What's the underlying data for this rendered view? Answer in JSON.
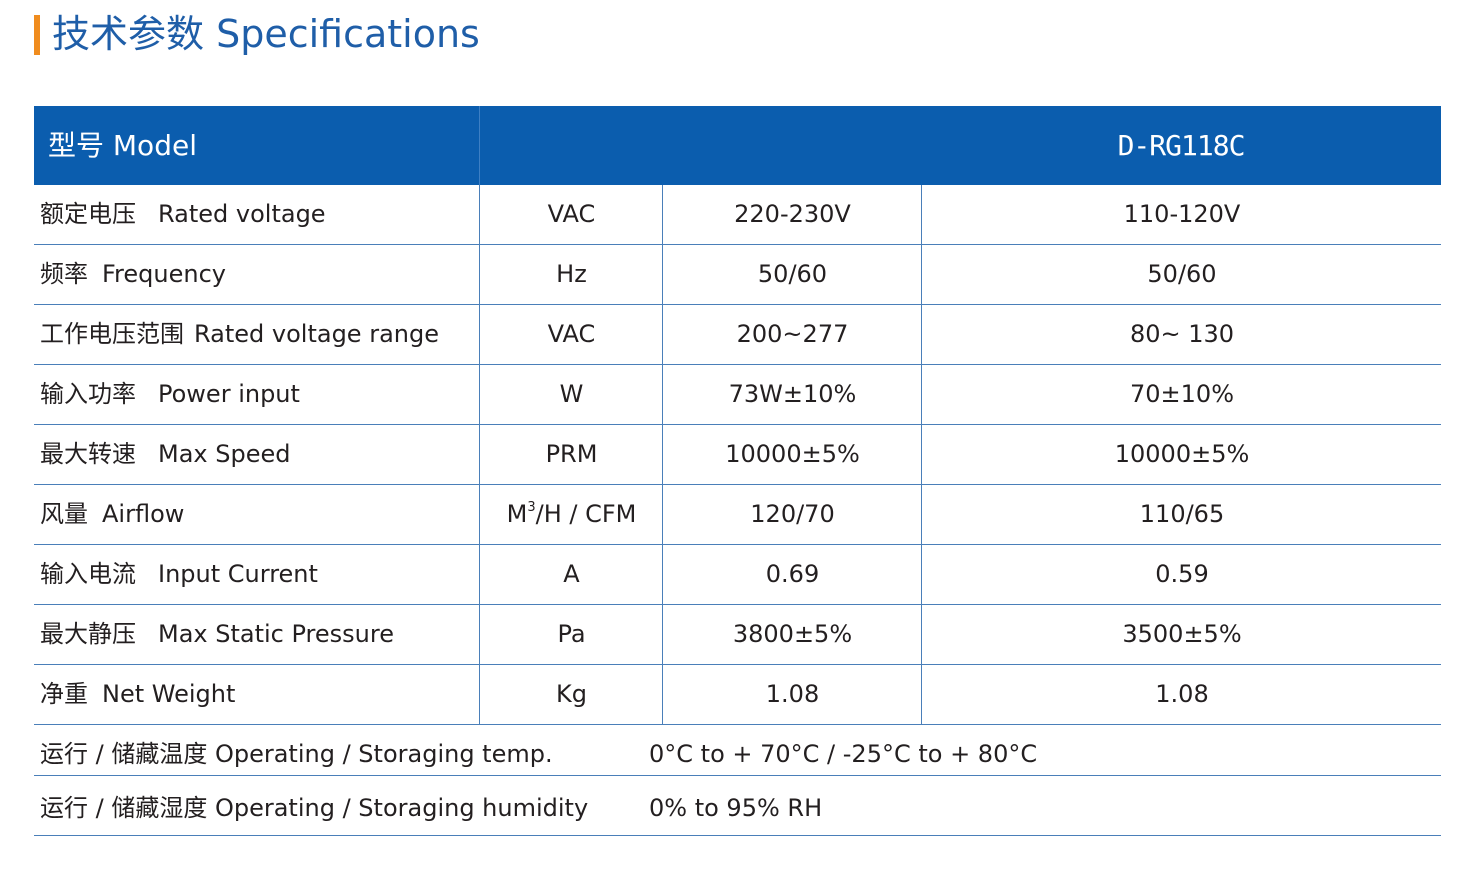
{
  "title": "技术参数 Specifications",
  "header": {
    "model_label": "型号 Model",
    "model_value": "D-RG118C"
  },
  "rows": [
    {
      "cn": "额定电压",
      "en": "Rated voltage",
      "unit": "VAC",
      "v1": "220-230V",
      "v2": "110-120V"
    },
    {
      "cn": "频率",
      "en": "Frequency",
      "unit": "Hz",
      "v1": "50/60",
      "v2": "50/60"
    },
    {
      "cn": "工作电压范围",
      "en": "Rated voltage range",
      "unit": "VAC",
      "v1": "200~277",
      "v2": "80~ 130"
    },
    {
      "cn": "输入功率",
      "en": "Power input",
      "unit": "W",
      "v1": "73W±10%",
      "v2": "70±10%"
    },
    {
      "cn": "最大转速",
      "en": "Max Speed",
      "unit": "PRM",
      "v1": "10000±5%",
      "v2": "10000±5%"
    },
    {
      "cn": "风量",
      "en": "Airflow",
      "unit_pre": "M",
      "unit_sup": "3",
      "unit_post": "/H / CFM",
      "v1": "120/70",
      "v2": "110/65"
    },
    {
      "cn": "输入电流",
      "en": "Input Current",
      "unit": "A",
      "v1": "0.69",
      "v2": "0.59"
    },
    {
      "cn": "最大静压",
      "en": "Max Static Pressure",
      "unit": "Pa",
      "v1": "3800±5%",
      "v2": "3500±5%"
    },
    {
      "cn": "净重",
      "en": "Net Weight",
      "unit": "Kg",
      "v1": "1.08",
      "v2": "1.08"
    }
  ],
  "footer_rows": [
    {
      "label": "运行 / 储藏温度 Operating / Storaging temp.",
      "value": "0°C to + 70°C / -25°C to + 80°C"
    },
    {
      "label": "运行 / 储藏湿度 Operating / Storaging humidity",
      "value": "0% to 95% RH"
    }
  ],
  "colors": {
    "header_bg": "#0b5dae",
    "title_text": "#1f5ea8",
    "accent_bar": "#f08c1e",
    "rule": "#4a7fb9"
  }
}
